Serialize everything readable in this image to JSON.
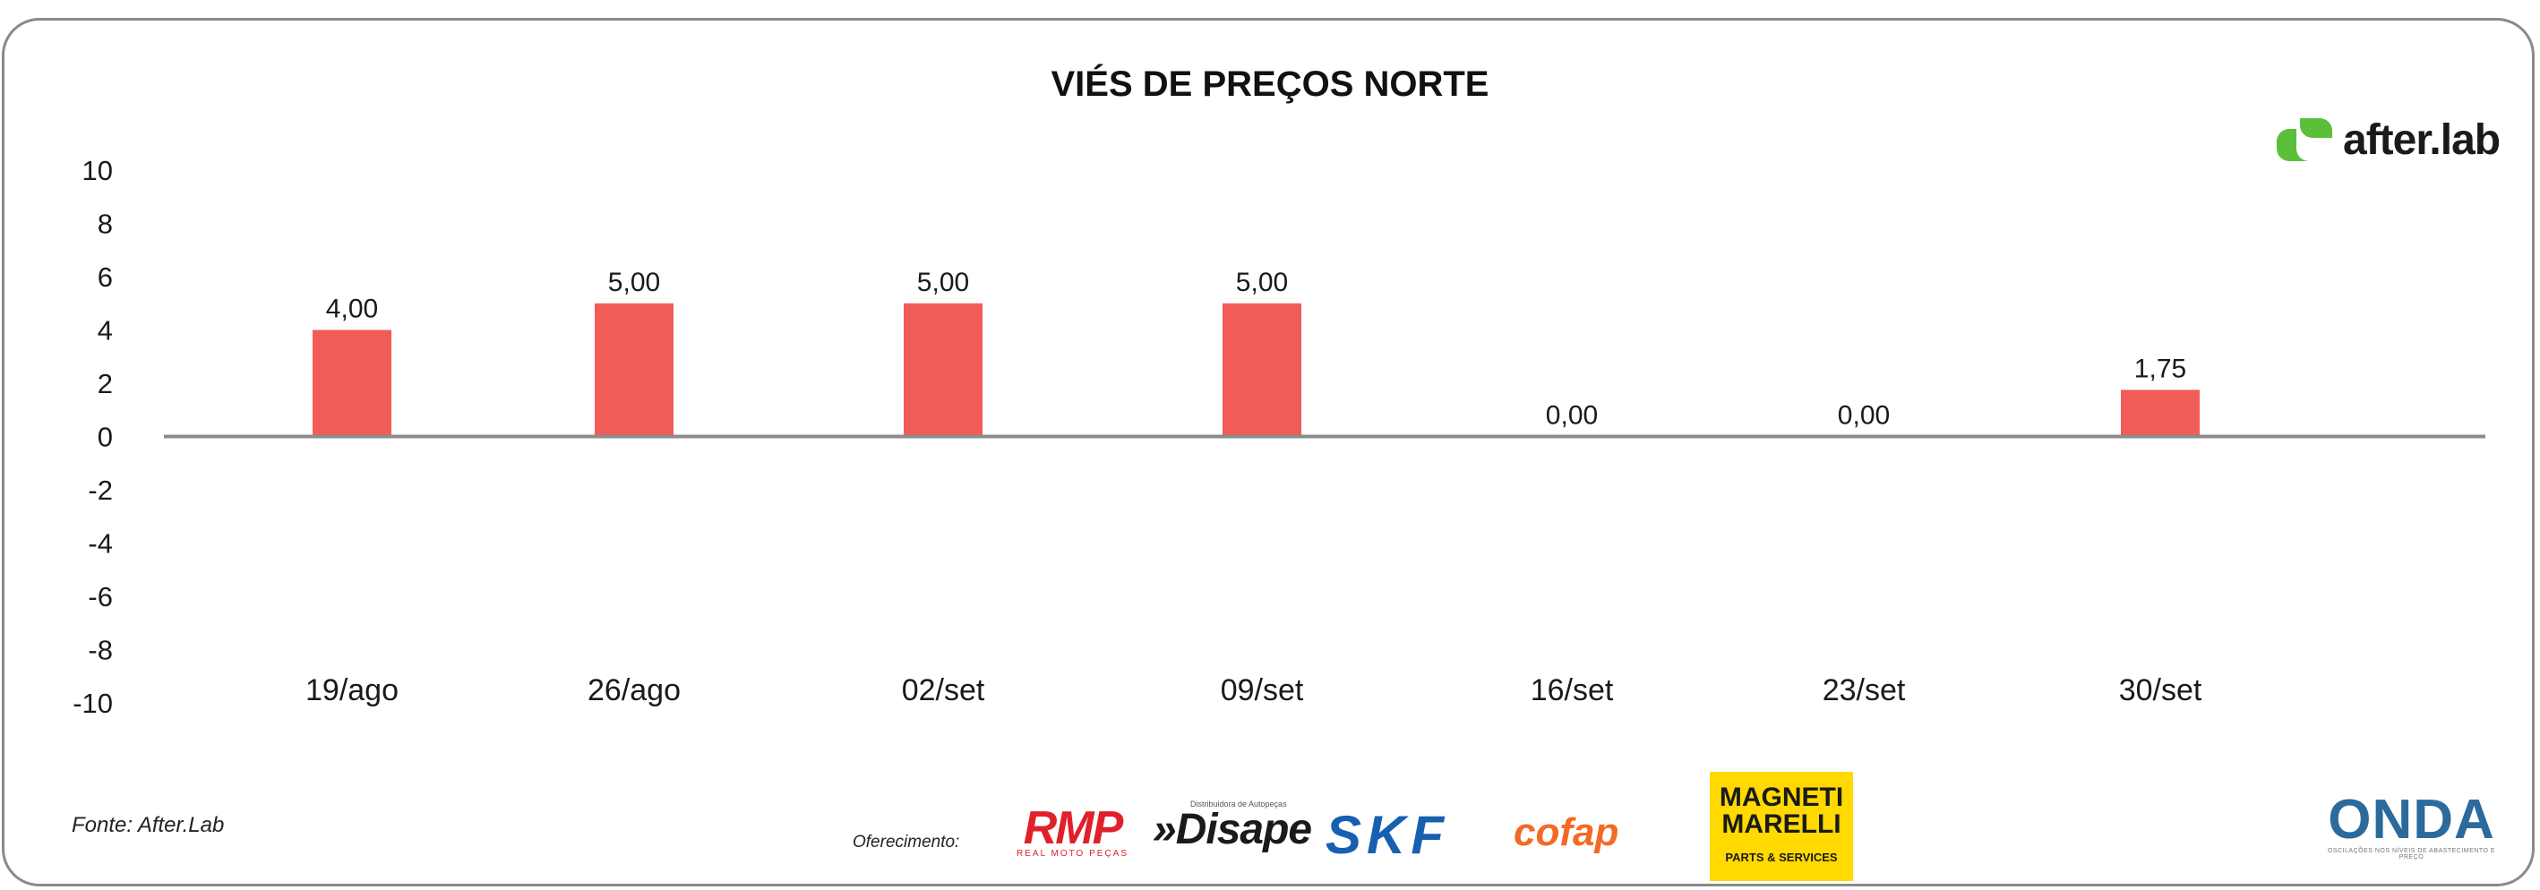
{
  "chart_data": {
    "type": "bar",
    "title": "VIÉS DE PREÇOS NORTE",
    "categories": [
      "19/ago",
      "26/ago",
      "02/set",
      "09/set",
      "16/set",
      "23/set",
      "30/set"
    ],
    "values": [
      4.0,
      5.0,
      5.0,
      5.0,
      0.0,
      0.0,
      1.75
    ],
    "value_labels": [
      "4,00",
      "5,00",
      "5,00",
      "5,00",
      "0,00",
      "0,00",
      "1,75"
    ],
    "y_ticks": [
      10,
      8,
      6,
      4,
      2,
      0,
      -2,
      -4,
      -6,
      -8,
      -10
    ],
    "ylim": [
      -10,
      10
    ],
    "grid": false,
    "legend": "none",
    "bar_color": "#f25c58",
    "axis_color": "#8c8c8c"
  },
  "footer": {
    "source": "Fonte: After.Lab",
    "sponsors_label": "Oferecimento:"
  },
  "logos": {
    "afterlab": "after.lab",
    "afterlab_icon": "afterlab-icon",
    "afterlab_color": "#5bbf3a",
    "rmp": "RMP",
    "rmp_sub": "REAL MOTO PEÇAS",
    "disape": "»Disape",
    "disape_sub": "Distribuidora de Autopeças",
    "skf": "SKF",
    "cofap": "cofap",
    "magneti": "MAGNETI MARELLI",
    "magneti_sub": "PARTS & SERVICES",
    "onda": "ONDA",
    "onda_sub": "OSCILAÇÕES NOS NÍVEIS DE ABASTECIMENTO E PREÇO"
  }
}
